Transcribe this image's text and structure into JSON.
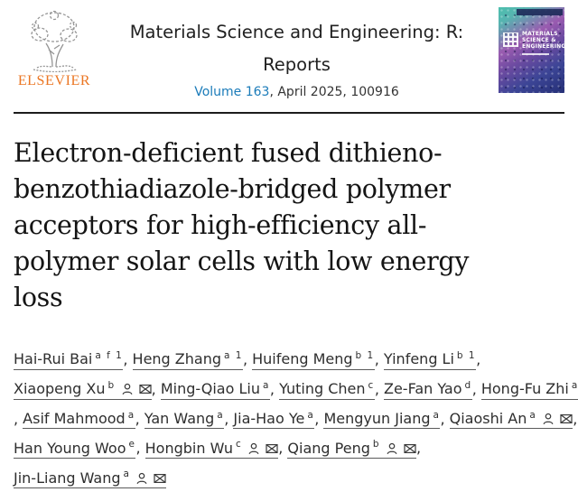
{
  "header": {
    "publisher": "ELSEVIER",
    "journal_title_line1": "Materials Science and Engineering: R:",
    "journal_title_line2": "Reports",
    "volume_link": "Volume 163",
    "issue_info": ", April 2025, 100916",
    "cover": {
      "title_lines": [
        "MATERIALS",
        "SCIENCE &",
        "ENGINEERING:R"
      ]
    }
  },
  "article": {
    "title_full": "Electron-deficient fused dithieno-benzothiadiazole-bridged polymer acceptors for high-efficiency all-polymer solar cells with low energy loss",
    "title_lines": [
      "Electron-deficient fused dithieno-",
      "benzothiadiazole-bridged polymer",
      "acceptors for high-efficiency all-",
      "polymer solar cells with low energy",
      "loss"
    ]
  },
  "authors": {
    "list": [
      {
        "name": "Hai-Rui Bai",
        "sup": "a f 1",
        "icons": []
      },
      {
        "name": "Heng Zhang",
        "sup": "a 1",
        "icons": []
      },
      {
        "name": "Huifeng Meng",
        "sup": "b 1",
        "icons": []
      },
      {
        "name": "Yinfeng Li",
        "sup": "b 1",
        "icons": []
      },
      {
        "name": "Xiaopeng Xu",
        "sup": "b",
        "icons": [
          "person",
          "envelope"
        ]
      },
      {
        "name": "Ming-Qiao Liu",
        "sup": "a",
        "icons": []
      },
      {
        "name": "Yuting Chen",
        "sup": "c",
        "icons": []
      },
      {
        "name": "Ze-Fan Yao",
        "sup": "d",
        "icons": []
      },
      {
        "name": "Hong-Fu Zhi",
        "sup": "a",
        "icons": []
      },
      {
        "name": "Asif Mahmood",
        "sup": "a",
        "icons": []
      },
      {
        "name": "Yan Wang",
        "sup": "a",
        "icons": []
      },
      {
        "name": "Jia-Hao Ye",
        "sup": "a",
        "icons": []
      },
      {
        "name": "Mengyun Jiang",
        "sup": "a",
        "icons": []
      },
      {
        "name": "Qiaoshi An",
        "sup": "a",
        "icons": [
          "person",
          "envelope"
        ]
      },
      {
        "name": "Han Young Woo",
        "sup": "e",
        "icons": []
      },
      {
        "name": "Hongbin Wu",
        "sup": "c",
        "icons": [
          "person",
          "envelope"
        ]
      },
      {
        "name": "Qiang Peng",
        "sup": "b",
        "icons": [
          "person",
          "envelope"
        ]
      },
      {
        "name": "Jin-Liang Wang",
        "sup": "a",
        "icons": [
          "person",
          "envelope"
        ]
      }
    ],
    "lines": [
      {
        "authors": [
          0,
          1,
          2,
          3
        ],
        "leading_comma": false,
        "trailing_comma": true
      },
      {
        "authors": [
          4,
          5,
          6,
          7,
          8
        ],
        "leading_comma": false,
        "trailing_comma": false
      },
      {
        "authors": [
          9,
          10,
          11,
          12,
          13
        ],
        "leading_comma": true,
        "trailing_comma": true
      },
      {
        "authors": [
          14,
          15,
          16
        ],
        "leading_comma": false,
        "trailing_comma": true
      },
      {
        "authors": [
          17
        ],
        "leading_comma": false,
        "trailing_comma": false
      }
    ]
  },
  "colors": {
    "elsevier_orange": "#EB7623",
    "link_blue": "#1A7BB9",
    "title_black": "#141414",
    "rule_black": "#1C1C1C",
    "underline_gray": "#5A5A5A"
  }
}
